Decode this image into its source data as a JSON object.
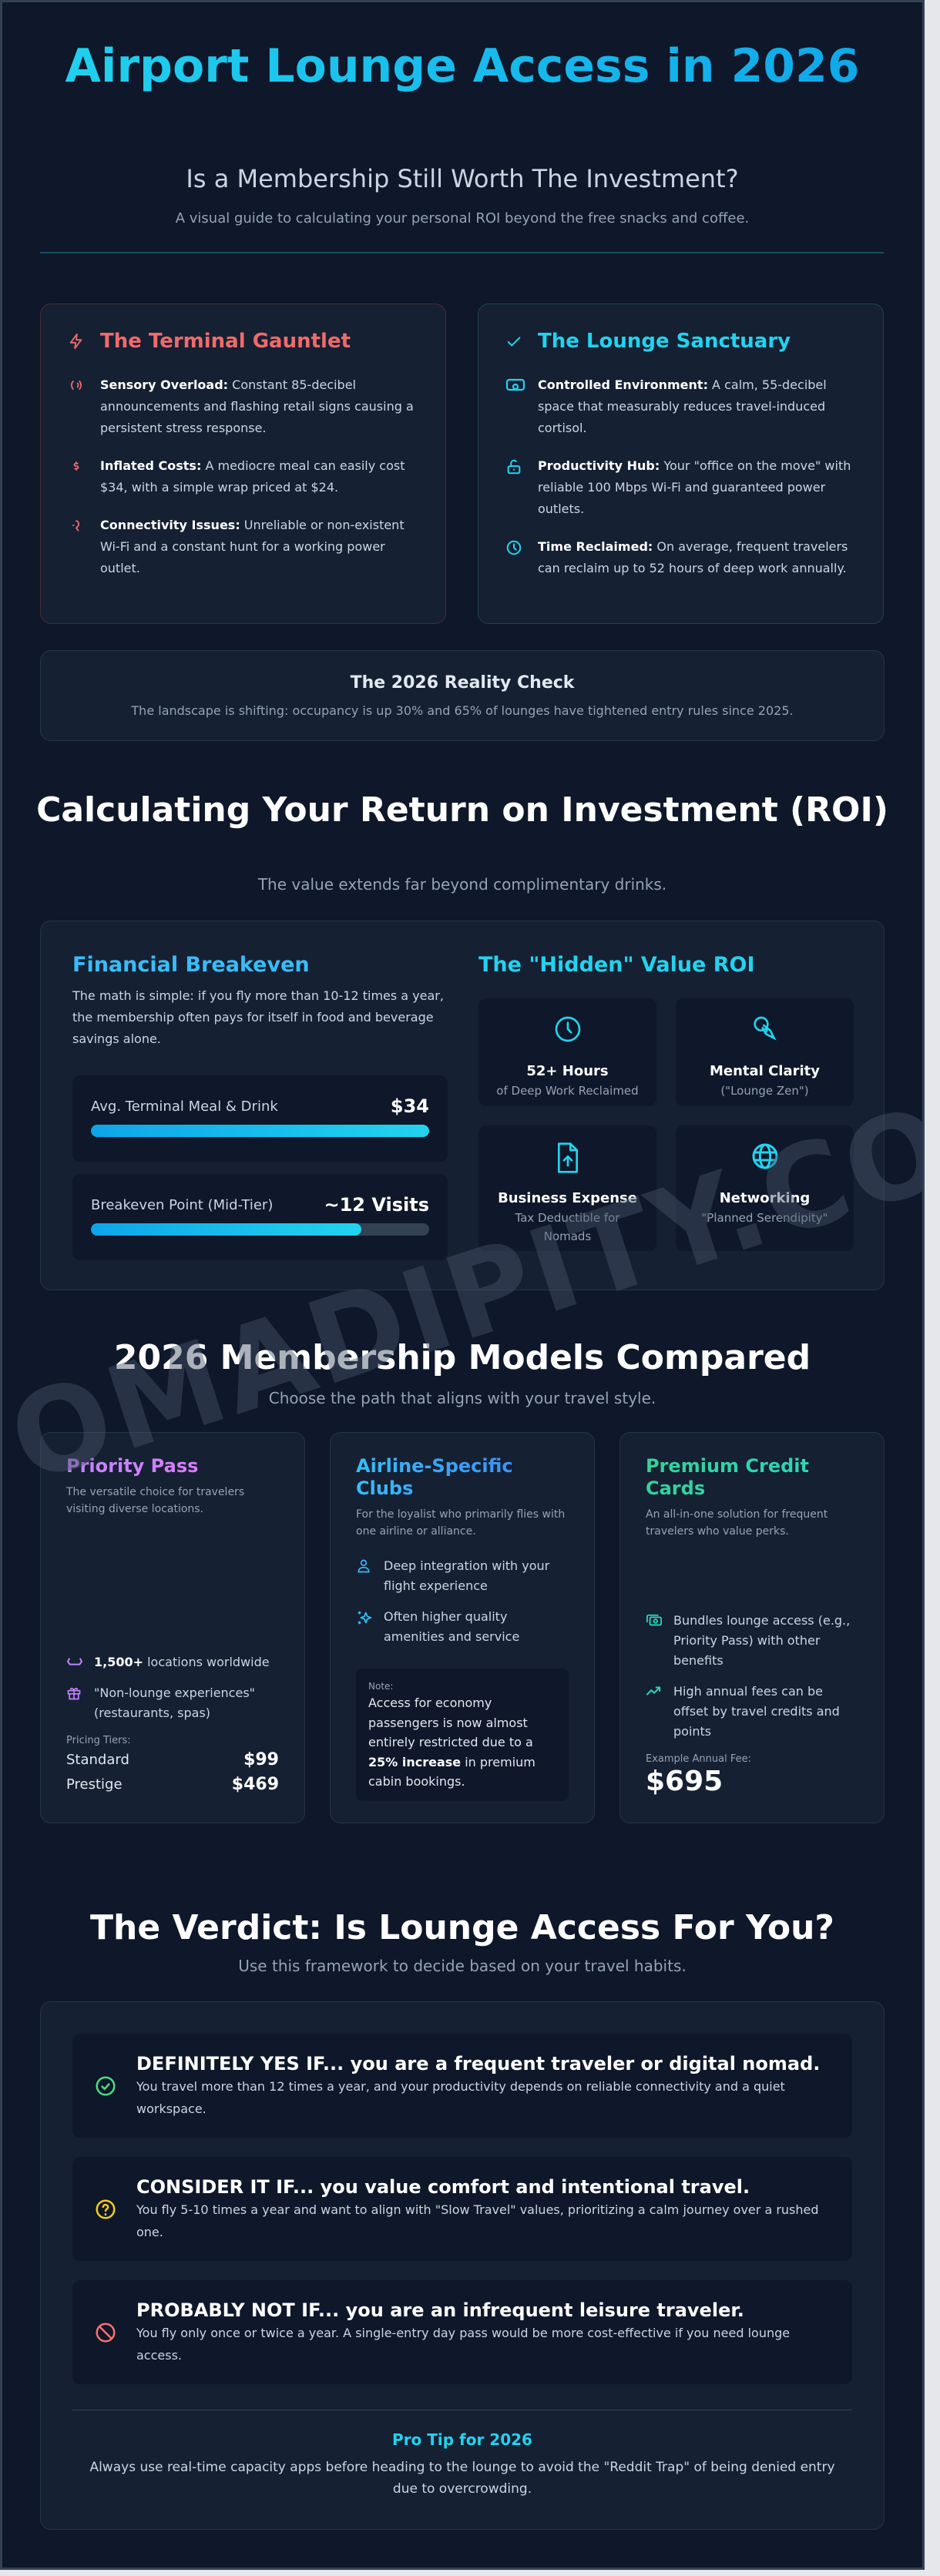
{
  "colors": {
    "background": "#0f172a",
    "card": "#162033",
    "accent_cyan": "#22d3ee",
    "accent_blue": "#38bdf8",
    "accent_red": "#ef6b6b",
    "purple": "#c084fc",
    "green": "#34d399",
    "yellow": "#facc15"
  },
  "header": {
    "title": "Airport Lounge Access in 2026",
    "subtitle": "Is a Membership Still Worth The Investment?",
    "tagline": "A visual guide to calculating your personal ROI beyond the free snacks and coffee."
  },
  "gauntlet": {
    "title": "The Terminal Gauntlet",
    "icon": "lightning-icon",
    "items": [
      {
        "icon": "sound-waves-icon",
        "bold": "Sensory Overload:",
        "text": " Constant 85-decibel announcements and flashing retail signs causing a persistent stress response."
      },
      {
        "icon": "dollar-icon",
        "bold": "Inflated Costs:",
        "text": " A mediocre meal can easily cost $34, with a simple wrap priced at $24."
      },
      {
        "icon": "plug-icon",
        "bold": "Connectivity Issues:",
        "text": " Unreliable or non-existent Wi-Fi and a constant hunt for a working power outlet."
      }
    ]
  },
  "sanctuary": {
    "title": "The Lounge Sanctuary",
    "icon": "check-icon",
    "items": [
      {
        "icon": "sofa-icon",
        "bold": "Controlled Environment:",
        "text": " A calm, 55-decibel space that measurably reduces travel-induced cortisol."
      },
      {
        "icon": "unlock-icon",
        "bold": "Productivity Hub:",
        "text": " Your \"office on the move\" with reliable 100 Mbps Wi-Fi and guaranteed power outlets."
      },
      {
        "icon": "clock-icon",
        "bold": "Time Reclaimed:",
        "text": " On average, frequent travelers can reclaim up to 52 hours of deep work annually."
      }
    ]
  },
  "reality_check": {
    "title": "The 2026 Reality Check",
    "text": "The landscape is shifting: occupancy is up 30% and 65% of lounges have tightened entry rules since 2025."
  },
  "roi": {
    "title": "Calculating Your Return on Investment (ROI)",
    "subtitle": "The value extends far beyond complimentary drinks.",
    "financial": {
      "title": "Financial Breakeven",
      "text": "The math is simple: if you fly more than 10-12 times a year, the membership often pays for itself in food and beverage savings alone.",
      "stats": [
        {
          "label": "Avg. Terminal Meal & Drink",
          "value": "$34",
          "fill_percent": 100
        },
        {
          "label": "Breakeven Point (Mid-Tier)",
          "value": "~12 Visits",
          "fill_percent": 80
        }
      ]
    },
    "hidden": {
      "title": "The \"Hidden\" Value ROI",
      "tiles": [
        {
          "icon": "clock-icon",
          "title": "52+ Hours",
          "sub": "of Deep Work Reclaimed"
        },
        {
          "icon": "brain-icon",
          "title": "Mental Clarity",
          "sub": "(\"Lounge Zen\")"
        },
        {
          "icon": "file-upload-icon",
          "title": "Business Expense",
          "sub": "Tax Deductible for Nomads"
        },
        {
          "icon": "globe-icon",
          "title": "Networking",
          "sub": "\"Planned Serendipity\""
        }
      ]
    }
  },
  "watermark": "OMADIPITY.CO",
  "memberships": {
    "title": "2026 Membership Models Compared",
    "subtitle": "Choose the path that aligns with your travel style.",
    "cards": [
      {
        "title": "Priority Pass",
        "desc": "The versatile choice for travelers visiting diverse locations.",
        "features": [
          {
            "icon": "sofa-icon",
            "bold": "1,500+",
            "text": " locations worldwide"
          },
          {
            "icon": "gift-icon",
            "bold": "",
            "text": "\"Non-lounge experiences\" (restaurants, spas)"
          }
        ],
        "pricing_label": "Pricing Tiers:",
        "tiers": [
          {
            "name": "Standard",
            "price": "$99"
          },
          {
            "name": "Prestige",
            "price": "$469"
          }
        ]
      },
      {
        "title": "Airline-Specific Clubs",
        "desc": "For the loyalist who primarily flies with one airline or alliance.",
        "features": [
          {
            "icon": "user-icon",
            "text": "Deep integration with your flight experience"
          },
          {
            "icon": "sparkles-icon",
            "text": "Often higher quality amenities and service"
          }
        ],
        "note_label": "Note:",
        "note_pre": "Access for economy passengers is now almost entirely restricted due to a ",
        "note_bold": "25% increase",
        "note_post": " in premium cabin bookings."
      },
      {
        "title": "Premium Credit Cards",
        "desc": "An all-in-one solution for frequent travelers who value perks.",
        "features": [
          {
            "icon": "cash-icon",
            "text": "Bundles lounge access (e.g., Priority Pass) with other benefits"
          },
          {
            "icon": "trending-up-icon",
            "text": "High annual fees can be offset by travel credits and points"
          }
        ],
        "fee_label": "Example Annual Fee:",
        "fee": "$695"
      }
    ]
  },
  "verdict": {
    "title": "The Verdict: Is Lounge Access For You?",
    "subtitle": "Use this framework to decide based on your travel habits.",
    "items": [
      {
        "icon": "check-circle-icon",
        "color": "#4ade80",
        "heading": "DEFINITELY YES IF... you are a frequent traveler or digital nomad.",
        "text": "You travel more than 12 times a year, and your productivity depends on reliable connectivity and a quiet workspace."
      },
      {
        "icon": "question-circle-icon",
        "color": "#facc15",
        "heading": "CONSIDER IT IF... you value comfort and intentional travel.",
        "text": "You fly 5-10 times a year and want to align with \"Slow Travel\" values, prioritizing a calm journey over a rushed one."
      },
      {
        "icon": "ban-icon",
        "color": "#f87171",
        "heading": "PROBABLY NOT IF... you are an infrequent leisure traveler.",
        "text": "You fly only once or twice a year. A single-entry day pass would be more cost-effective if you need lounge access."
      }
    ],
    "tip_title": "Pro Tip for 2026",
    "tip_text": "Always use real-time capacity apps before heading to the lounge to avoid the \"Reddit Trap\" of being denied entry due to overcrowding."
  }
}
